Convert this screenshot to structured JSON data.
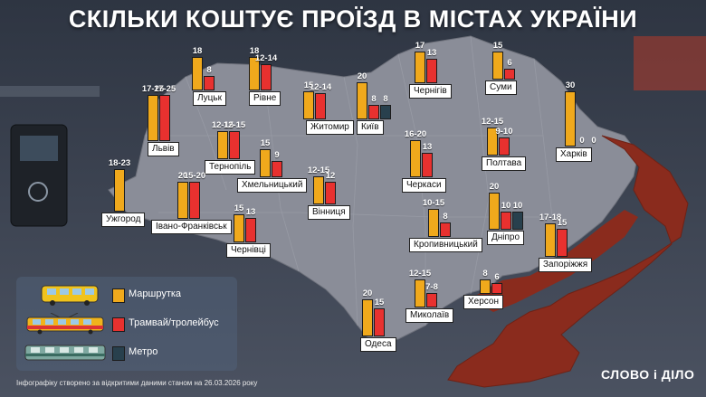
{
  "title": "СКІЛЬКИ КОШТУЄ ПРОЇЗД В МІСТАХ УКРАЇНИ",
  "colors": {
    "bus": "#f0a91c",
    "tram": "#e8312f",
    "metro": "#28404d",
    "map": "#8a8d98",
    "occupied": "#8a2b1d",
    "label_bg": "#ffffff"
  },
  "legend": [
    {
      "key": "bus",
      "icon": "bus-icon",
      "label": "Маршрутка"
    },
    {
      "key": "tram",
      "icon": "tram-icon",
      "label": "Трамвай/тролейбус"
    },
    {
      "key": "metro",
      "icon": "metro-train-icon",
      "label": "Метро"
    }
  ],
  "footer": "Інфографіку створено за відкритими даними станом на 26.03.2026 року",
  "logo": "СЛОВО і ДІЛО",
  "chart_data": {
    "type": "bar",
    "title": "СКІЛЬКИ КОШТУЄ ПРОЇЗД В МІСТАХ УКРАЇНИ",
    "series_names": [
      "Маршрутка",
      "Трамвай/тролейбус",
      "Метро"
    ],
    "cities": [
      {
        "name": "Луцьк",
        "bars": [
          {
            "s": "bus",
            "label": "18",
            "value": 18
          },
          {
            "s": "tram",
            "label": "8",
            "value": 8
          }
        ]
      },
      {
        "name": "Рівне",
        "bars": [
          {
            "s": "bus",
            "label": "18",
            "value": 18
          },
          {
            "s": "tram",
            "label": "12-14",
            "value": 14
          }
        ]
      },
      {
        "name": "Житомир",
        "bars": [
          {
            "s": "bus",
            "label": "15",
            "value": 15
          },
          {
            "s": "tram",
            "label": "12-14",
            "value": 14
          }
        ]
      },
      {
        "name": "Київ",
        "bars": [
          {
            "s": "bus",
            "label": "20",
            "value": 20
          },
          {
            "s": "tram",
            "label": "8",
            "value": 8
          },
          {
            "s": "metro",
            "label": "8",
            "value": 8
          }
        ]
      },
      {
        "name": "Чернігів",
        "bars": [
          {
            "s": "bus",
            "label": "17",
            "value": 17
          },
          {
            "s": "tram",
            "label": "13",
            "value": 13
          }
        ]
      },
      {
        "name": "Суми",
        "bars": [
          {
            "s": "bus",
            "label": "15",
            "value": 15
          },
          {
            "s": "tram",
            "label": "6",
            "value": 6
          }
        ]
      },
      {
        "name": "Харків",
        "bars": [
          {
            "s": "bus",
            "label": "30",
            "value": 30
          },
          {
            "s": "tram",
            "label": "0",
            "value": 0
          },
          {
            "s": "metro",
            "label": "0",
            "value": 0
          }
        ]
      },
      {
        "name": "Львів",
        "bars": [
          {
            "s": "bus",
            "label": "17-25",
            "value": 25
          },
          {
            "s": "tram",
            "label": "17-25",
            "value": 25
          }
        ]
      },
      {
        "name": "Тернопіль",
        "bars": [
          {
            "s": "bus",
            "label": "12-15",
            "value": 15
          },
          {
            "s": "tram",
            "label": "12-15",
            "value": 15
          }
        ]
      },
      {
        "name": "Хмельницький",
        "bars": [
          {
            "s": "bus",
            "label": "15",
            "value": 15
          },
          {
            "s": "tram",
            "label": "9",
            "value": 9
          }
        ]
      },
      {
        "name": "Вінниця",
        "bars": [
          {
            "s": "bus",
            "label": "12-15",
            "value": 15
          },
          {
            "s": "tram",
            "label": "12",
            "value": 12
          }
        ]
      },
      {
        "name": "Черкаси",
        "bars": [
          {
            "s": "bus",
            "label": "16-20",
            "value": 20
          },
          {
            "s": "tram",
            "label": "13",
            "value": 13
          }
        ]
      },
      {
        "name": "Полтава",
        "bars": [
          {
            "s": "bus",
            "label": "12-15",
            "value": 15
          },
          {
            "s": "tram",
            "label": "9-10",
            "value": 10
          }
        ]
      },
      {
        "name": "Ужгород",
        "bars": [
          {
            "s": "bus",
            "label": "18-23",
            "value": 23
          }
        ]
      },
      {
        "name": "Івано-Франківськ",
        "bars": [
          {
            "s": "bus",
            "label": "20",
            "value": 20
          },
          {
            "s": "tram",
            "label": "15-20",
            "value": 20
          }
        ]
      },
      {
        "name": "Чернівці",
        "bars": [
          {
            "s": "bus",
            "label": "15",
            "value": 15
          },
          {
            "s": "tram",
            "label": "13",
            "value": 13
          }
        ]
      },
      {
        "name": "Кропивницький",
        "bars": [
          {
            "s": "bus",
            "label": "10-15",
            "value": 15
          },
          {
            "s": "tram",
            "label": "8",
            "value": 8
          }
        ]
      },
      {
        "name": "Дніпро",
        "bars": [
          {
            "s": "bus",
            "label": "20",
            "value": 20
          },
          {
            "s": "tram",
            "label": "10",
            "value": 10
          },
          {
            "s": "metro",
            "label": "10",
            "value": 10
          }
        ]
      },
      {
        "name": "Запоріжжя",
        "bars": [
          {
            "s": "bus",
            "label": "17-18",
            "value": 18
          },
          {
            "s": "tram",
            "label": "15",
            "value": 15
          }
        ]
      },
      {
        "name": "Миколаїв",
        "bars": [
          {
            "s": "bus",
            "label": "12-15",
            "value": 15
          },
          {
            "s": "tram",
            "label": "7-8",
            "value": 8
          }
        ]
      },
      {
        "name": "Херсон",
        "bars": [
          {
            "s": "bus",
            "label": "8",
            "value": 8
          },
          {
            "s": "tram",
            "label": "6",
            "value": 6
          }
        ]
      },
      {
        "name": "Одеса",
        "bars": [
          {
            "s": "bus",
            "label": "20",
            "value": 20
          },
          {
            "s": "tram",
            "label": "15",
            "value": 15
          }
        ]
      }
    ]
  }
}
